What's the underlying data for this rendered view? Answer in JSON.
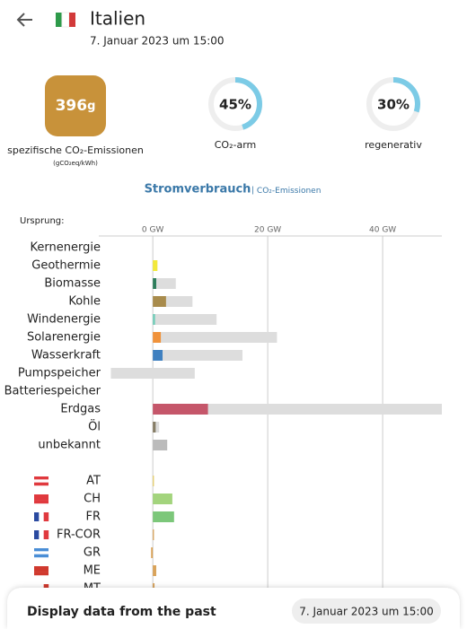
{
  "header": {
    "country": "Italien",
    "datetime": "7. Januar 2023 um 15:00"
  },
  "stats": {
    "carbon_intensity": "396",
    "carbon_unit": "g",
    "carbon_label": "spezifische CO₂-Emissionen",
    "carbon_sublabel": "(gCO₂eq/kWh)",
    "low_carbon": {
      "value": 45,
      "label": "45%"
    },
    "low_carbon_label": "CO₂-arm",
    "renewable": {
      "value": 30,
      "label": "30%"
    },
    "renewable_label": "regenerativ"
  },
  "chart_data": {
    "type": "bar",
    "title": "Stromverbrauch",
    "subtitle": "CO₂-Emissionen",
    "y_label": "Ursprung:",
    "xlim": [
      -9.4,
      50.3
    ],
    "xticks": [
      {
        "value": 0,
        "label": "0 GW"
      },
      {
        "value": 20,
        "label": "20 GW"
      },
      {
        "value": 40,
        "label": "40 GW"
      }
    ],
    "grid": true,
    "categories": [
      "Kernenergie",
      "Geothermie",
      "Biomasse",
      "Kohle",
      "Windenergie",
      "Solarenergie",
      "Wasserkraft",
      "Pumpspeicher",
      "Batteriespeicher",
      "Erdgas",
      "Öl",
      "unbekannt"
    ],
    "series": [
      {
        "color": "#dddddd",
        "low": [
          0,
          0,
          0,
          0,
          0,
          0,
          0,
          -7.3,
          0,
          0,
          0,
          0
        ],
        "values": [
          0,
          0.8,
          4.0,
          6.9,
          11.1,
          21.6,
          15.6,
          7.3,
          0,
          50.3,
          1.1,
          2.5
        ]
      },
      {
        "colors": [
          "#9b79c9",
          "#f2e93a",
          "#2e7d5b",
          "#a88b4c",
          "#74cdb9",
          "#f0923a",
          "#3f80c0",
          "#7fa6d6",
          "#b0b0d8",
          "#c5566a",
          "#867d66",
          "#bbbbbb"
        ],
        "values": [
          0,
          0.8,
          0.6,
          2.3,
          0.4,
          1.4,
          1.7,
          0,
          0,
          9.6,
          0.5,
          2.5
        ]
      }
    ],
    "imports": {
      "categories": [
        "AT",
        "CH",
        "FR",
        "FR-COR",
        "GR",
        "ME",
        "MT"
      ],
      "colors": [
        "#e8d06a",
        "#a3d47d",
        "#7cc77a",
        "#d9a35a",
        "#d9a35a",
        "#d9a35a",
        "#d9a35a"
      ],
      "values": [
        0.2,
        3.4,
        3.7,
        0.2,
        -0.3,
        0.6,
        0.3
      ]
    }
  },
  "footer": {
    "label": "Display data from the past",
    "date": "7. Januar 2023 um 15:00"
  }
}
